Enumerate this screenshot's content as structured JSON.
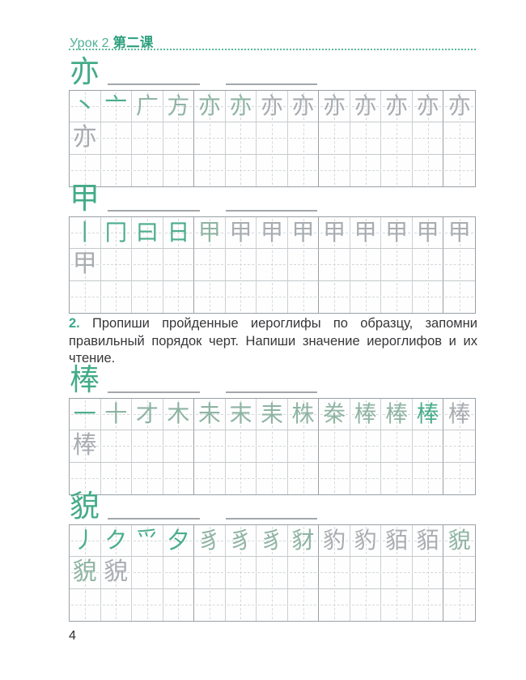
{
  "header": {
    "lesson_ru": "Урок 2",
    "lesson_zh": "第二课"
  },
  "instruction": {
    "number": "2.",
    "text": " Пропиши пройденные иероглифы по образцу, запомни правильный порядок черт. Напиши значение иероглифов и их чтение."
  },
  "page": {
    "number": "4"
  },
  "colors": {
    "accent_green": "#3ca98a",
    "stroke_green": "#4aad8c",
    "stroke_gray": "#a9adb1",
    "grid_line": "#ccd0d3",
    "grid_line_strong": "#9aa0a5",
    "blank_line": "#a3a7ab"
  },
  "grid_layout": {
    "columns": 13,
    "rows": 3,
    "group_every": 4
  },
  "practice_blocks": [
    {
      "character": "亦",
      "stroke_glyphs": [
        "丶",
        "亠",
        "广",
        "方",
        "亦",
        "亦",
        "亦",
        "亦",
        "亦",
        "亦",
        "亦",
        "亦",
        "亦"
      ],
      "stroke_tones": [
        "green",
        "green",
        "mixed",
        "mixed",
        "mixed",
        "mixed",
        "gray",
        "gray",
        "gray",
        "gray",
        "gray",
        "gray",
        "gray"
      ],
      "practice_glyphs": [
        "亦"
      ],
      "practice_tones": [
        "gray"
      ],
      "blank_lines": 2
    },
    {
      "character": "甲",
      "stroke_glyphs": [
        "丨",
        "冂",
        "曰",
        "日",
        "甲",
        "甲",
        "甲",
        "甲",
        "甲",
        "甲",
        "甲",
        "甲",
        "甲"
      ],
      "stroke_tones": [
        "green",
        "green",
        "green",
        "green",
        "mixed",
        "gray",
        "gray",
        "gray",
        "gray",
        "gray",
        "gray",
        "gray",
        "gray"
      ],
      "practice_glyphs": [
        "甲"
      ],
      "practice_tones": [
        "gray"
      ],
      "blank_lines": 2
    },
    {
      "character": "棒",
      "stroke_glyphs": [
        "一",
        "十",
        "才",
        "木",
        "未",
        "末",
        "耒",
        "株",
        "桊",
        "棒",
        "棒",
        "棒",
        "棒"
      ],
      "stroke_tones": [
        "green",
        "mixed",
        "mixed",
        "mixed",
        "mixed",
        "mixed",
        "mixed",
        "mixed",
        "mixed",
        "mixed",
        "mixed",
        "green",
        "gray"
      ],
      "practice_glyphs": [
        "棒"
      ],
      "practice_tones": [
        "gray"
      ],
      "blank_lines": 2
    },
    {
      "character": "貌",
      "stroke_glyphs": [
        "丿",
        "ク",
        "爫",
        "夕",
        "豸",
        "豸",
        "豸",
        "豺",
        "豹",
        "豹",
        "貊",
        "貊",
        "貌"
      ],
      "stroke_tones": [
        "green",
        "green",
        "green",
        "green",
        "mixed",
        "mixed",
        "mixed",
        "mixed",
        "gray",
        "gray",
        "gray",
        "gray",
        "mixed"
      ],
      "practice_glyphs": [
        "貌",
        "貌"
      ],
      "practice_tones": [
        "mixed",
        "gray"
      ],
      "blank_lines": 2
    }
  ]
}
